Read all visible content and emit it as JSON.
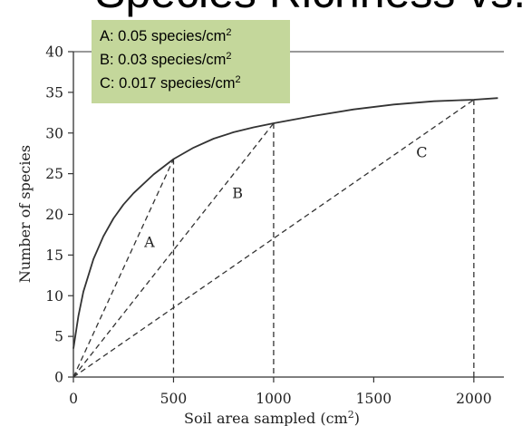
{
  "slide_title": "Species Richness vs. Sampling Area",
  "legend_box": {
    "rates": [
      {
        "text": "A: 0.05 species/cm",
        "sup": "2"
      },
      {
        "text": "B: 0.03 species/cm",
        "sup": "2"
      },
      {
        "text": "C: 0.017 species/cm",
        "sup": "2"
      }
    ],
    "background": "#c4d79b"
  },
  "chart_data": {
    "type": "line",
    "title": "",
    "xlabel": "Soil area sampled (cm",
    "xlabel_sup": "2",
    "xlabel_close": ")",
    "ylabel": "Number of species",
    "xlim": [
      0,
      2150
    ],
    "ylim": [
      0,
      40
    ],
    "xticks": [
      0,
      500,
      1000,
      1500,
      2000
    ],
    "yticks": [
      0,
      5,
      10,
      15,
      20,
      25,
      30,
      35,
      40
    ],
    "grid": false,
    "series": [
      {
        "style": "solid",
        "x": [
          0,
          25,
          50,
          100,
          150,
          200,
          250,
          300,
          400,
          500,
          600,
          700,
          800,
          900,
          1000,
          1200,
          1400,
          1600,
          1800,
          2000,
          2120
        ],
        "y": [
          3.5,
          7.5,
          10.5,
          14.5,
          17.3,
          19.5,
          21.2,
          22.6,
          24.9,
          26.8,
          28.2,
          29.3,
          30.1,
          30.7,
          31.2,
          32.1,
          32.9,
          33.5,
          33.9,
          34.1,
          34.3
        ]
      },
      {
        "name": "A",
        "style": "dashed",
        "x": [
          0,
          500
        ],
        "y": [
          0,
          26.8
        ]
      },
      {
        "name": "B",
        "style": "dashed",
        "x": [
          0,
          1000
        ],
        "y": [
          0,
          31.2
        ]
      },
      {
        "name": "C",
        "style": "dashed",
        "x": [
          0,
          2000
        ],
        "y": [
          0,
          34.1
        ]
      }
    ],
    "drop_lines": [
      {
        "x": 500,
        "y": 26.8
      },
      {
        "x": 1000,
        "y": 31.2
      },
      {
        "x": 2000,
        "y": 34.1
      }
    ],
    "line_labels": [
      {
        "text": "A",
        "x": 380,
        "y": 16
      },
      {
        "text": "B",
        "x": 820,
        "y": 22
      },
      {
        "text": "C",
        "x": 1740,
        "y": 27
      }
    ],
    "line_color": "#333333"
  }
}
